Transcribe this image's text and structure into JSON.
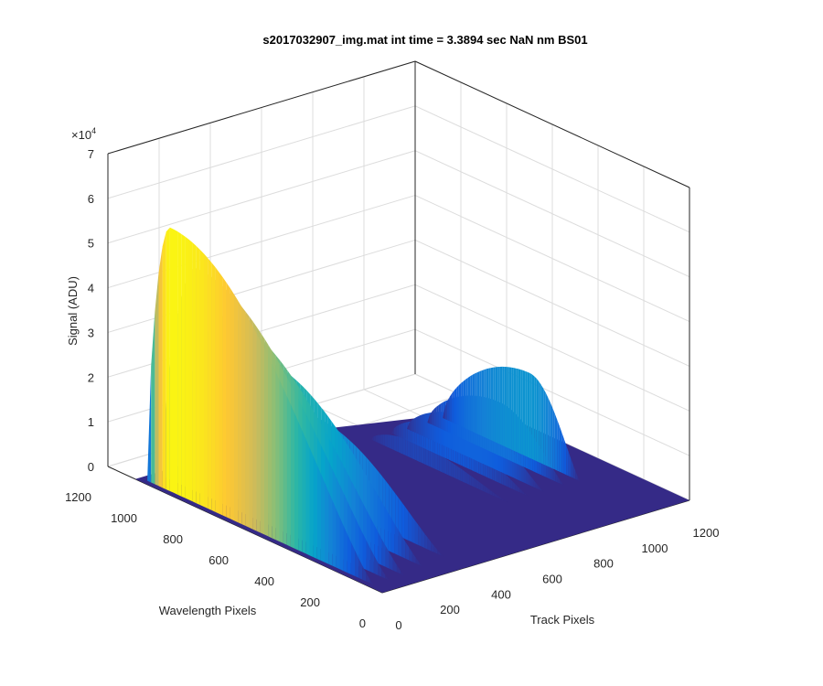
{
  "chart_data": {
    "type": "surface",
    "title": "s2017032907_img.mat int time = 3.3894 sec  NaN nm BS01",
    "xlabel": "Track Pixels",
    "ylabel": "Wavelength Pixels",
    "zlabel": "Signal (ADU)",
    "zscale_label": "×10",
    "zscale_exp": "4",
    "xlim": [
      0,
      1200
    ],
    "ylim": [
      0,
      1200
    ],
    "zlim": [
      0,
      70000
    ],
    "x_ticks": [
      "0",
      "200",
      "400",
      "600",
      "800",
      "1000",
      "1200"
    ],
    "y_ticks": [
      "0",
      "200",
      "400",
      "600",
      "800",
      "1000",
      "1200"
    ],
    "z_ticks": [
      "0",
      "1",
      "2",
      "3",
      "4",
      "5",
      "6",
      "7"
    ],
    "grid": true,
    "colormap": [
      "#352a87",
      "#0f5cdd",
      "#1481d6",
      "#06a4ca",
      "#2eb7a4",
      "#87bf77",
      "#d1bb59",
      "#fec832",
      "#f9fb0e"
    ],
    "ridges_track_low": [
      {
        "track": 20,
        "peak_signal": 59000,
        "peak_wavelength": 950,
        "start_wavelength": 1050,
        "end_wavelength": 60
      },
      {
        "track": 80,
        "peak_signal": 50000,
        "peak_wavelength": 900,
        "start_wavelength": 1050,
        "end_wavelength": 60
      },
      {
        "track": 140,
        "peak_signal": 40000,
        "peak_wavelength": 820,
        "start_wavelength": 1050,
        "end_wavelength": 60
      },
      {
        "track": 230,
        "peak_signal": 30000,
        "peak_wavelength": 750,
        "start_wavelength": 1000,
        "end_wavelength": 80
      },
      {
        "track": 330,
        "peak_signal": 18000,
        "peak_wavelength": 650,
        "start_wavelength": 950,
        "end_wavelength": 100
      }
    ],
    "ridges_track_high": [
      {
        "track": 760,
        "peak_signal": 4000,
        "peak_wavelength": 700
      },
      {
        "track": 840,
        "peak_signal": 7000,
        "peak_wavelength": 650
      },
      {
        "track": 900,
        "peak_signal": 9000,
        "peak_wavelength": 600
      },
      {
        "track": 980,
        "peak_signal": 12000,
        "peak_wavelength": 580
      },
      {
        "track": 1040,
        "peak_signal": 19000,
        "peak_wavelength": 520
      }
    ]
  }
}
